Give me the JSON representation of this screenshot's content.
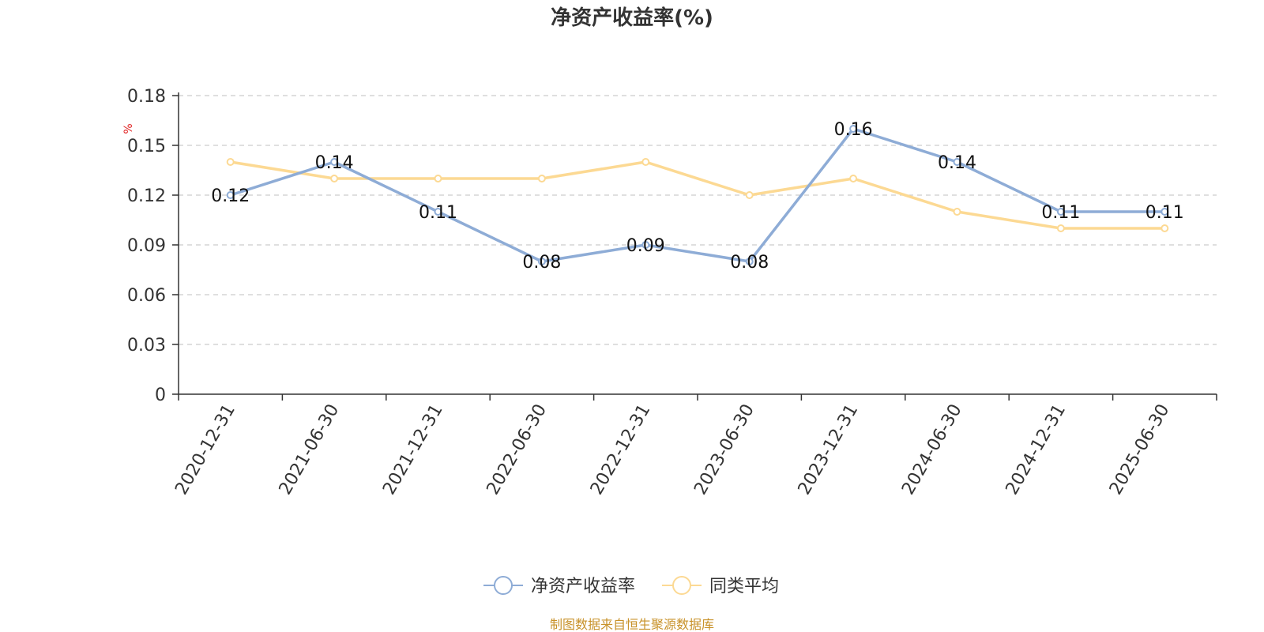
{
  "chart_data": {
    "type": "line",
    "title": "净资产收益率(%)",
    "ylabel": "%",
    "xlabel": "",
    "categories": [
      "2020-12-31",
      "2021-06-30",
      "2021-12-31",
      "2022-06-30",
      "2022-12-31",
      "2023-06-30",
      "2023-12-31",
      "2024-06-30",
      "2024-12-31",
      "2025-06-30"
    ],
    "series": [
      {
        "name": "净资产收益率",
        "color": "#8eacd6",
        "values": [
          0.12,
          0.14,
          0.11,
          0.08,
          0.09,
          0.08,
          0.16,
          0.14,
          0.11,
          0.11
        ],
        "data_labels": [
          "0.12",
          "0.14",
          "0.11",
          "0.08",
          "0.09",
          "0.08",
          "0.16",
          "0.14",
          "0.11",
          "0.11"
        ]
      },
      {
        "name": "同类平均",
        "color": "#fcd993",
        "values": [
          0.14,
          0.13,
          0.13,
          0.13,
          0.14,
          0.12,
          0.13,
          0.11,
          0.1,
          0.1
        ]
      }
    ],
    "ylim": [
      0,
      0.18
    ],
    "yticks": [
      "0",
      "0.03",
      "0.06",
      "0.09",
      "0.12",
      "0.15",
      "0.18"
    ],
    "grid": true,
    "legend_position": "bottom-center",
    "source_note": "制图数据来自恒生聚源数据库"
  }
}
